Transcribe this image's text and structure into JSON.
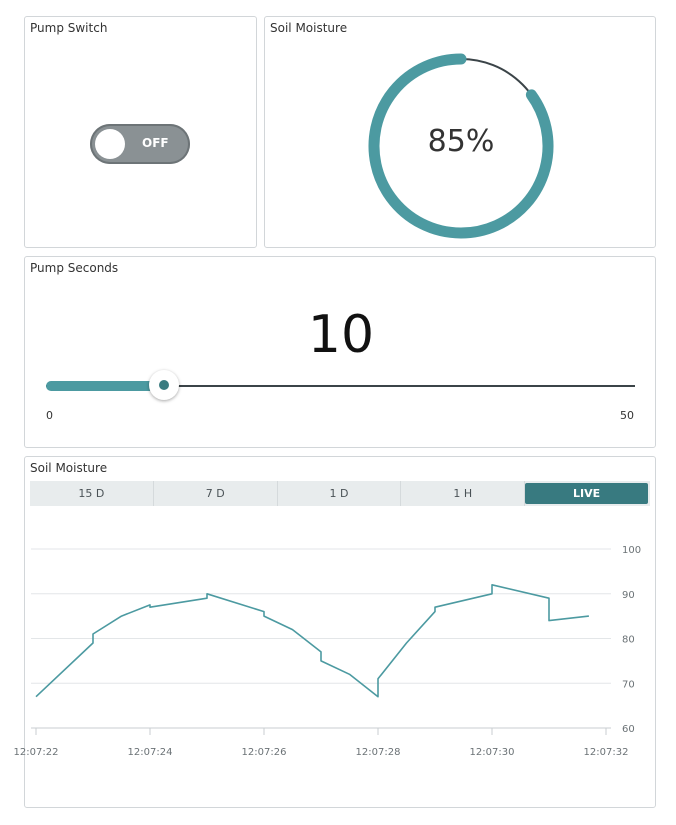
{
  "pump_switch": {
    "title": "Pump Switch",
    "state_label": "OFF"
  },
  "soil_gauge": {
    "title": "Soil Moisture",
    "value": 85,
    "value_label": "85%",
    "color": "#4c9aa1"
  },
  "pump_seconds": {
    "title": "Pump Seconds",
    "value": 10,
    "value_label": "10",
    "min": 0,
    "max": 50,
    "min_label": "0",
    "max_label": "50"
  },
  "soil_chart": {
    "title": "Soil Moisture",
    "tabs": [
      {
        "label": "15 D",
        "active": false
      },
      {
        "label": "7 D",
        "active": false
      },
      {
        "label": "1 D",
        "active": false
      },
      {
        "label": "1 H",
        "active": false
      },
      {
        "label": "LIVE",
        "active": true
      }
    ]
  },
  "chart_data": {
    "type": "line",
    "title": "",
    "xlabel": "",
    "ylabel": "",
    "ylim": [
      60,
      100
    ],
    "y_ticks": [
      60,
      70,
      80,
      90,
      100
    ],
    "x_tick_labels": [
      "12:07:22",
      "12:07:24",
      "12:07:26",
      "12:07:28",
      "12:07:30",
      "12:07:32"
    ],
    "x_range_seconds": [
      22,
      32
    ],
    "grid": true,
    "color": "#4c9aa1",
    "series": [
      {
        "values": [
          {
            "x": 22.0,
            "y": 67.0
          },
          {
            "x": 23.0,
            "y": 79.0
          },
          {
            "x": 23.0,
            "y": 81.0
          },
          {
            "x": 23.5,
            "y": 85.0
          },
          {
            "x": 24.0,
            "y": 87.5
          },
          {
            "x": 24.0,
            "y": 87.0
          },
          {
            "x": 25.0,
            "y": 89.0
          },
          {
            "x": 25.0,
            "y": 90.0
          },
          {
            "x": 26.0,
            "y": 86.0
          },
          {
            "x": 26.0,
            "y": 85.0
          },
          {
            "x": 26.5,
            "y": 82.0
          },
          {
            "x": 27.0,
            "y": 77.0
          },
          {
            "x": 27.0,
            "y": 75.0
          },
          {
            "x": 27.5,
            "y": 72.0
          },
          {
            "x": 28.0,
            "y": 67.0
          },
          {
            "x": 28.0,
            "y": 71.0
          },
          {
            "x": 28.5,
            "y": 79.0
          },
          {
            "x": 29.0,
            "y": 86.0
          },
          {
            "x": 29.0,
            "y": 87.0
          },
          {
            "x": 30.0,
            "y": 90.0
          },
          {
            "x": 30.0,
            "y": 92.0
          },
          {
            "x": 31.0,
            "y": 89.0
          },
          {
            "x": 31.0,
            "y": 84.0
          },
          {
            "x": 31.7,
            "y": 85.0
          }
        ]
      }
    ]
  }
}
